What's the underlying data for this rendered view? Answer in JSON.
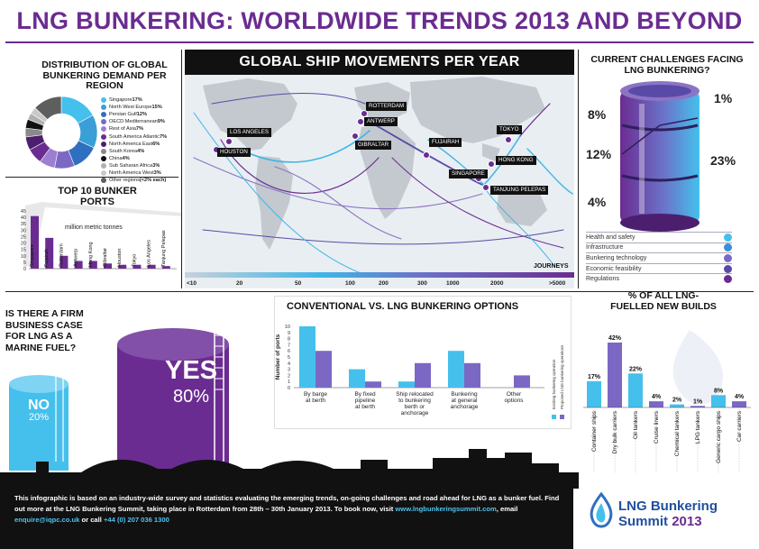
{
  "header": {
    "title": "LNG BUNKERING: WORLDWIDE TRENDS 2013 AND BEYOND"
  },
  "colors": {
    "purple": "#6b2c91",
    "blue": "#3fb6e8",
    "lavender": "#8c73c4",
    "dark": "#111111"
  },
  "donut": {
    "title": "DISTRIBUTION OF GLOBAL BUNKERING DEMAND PER REGION",
    "items": [
      {
        "label": "Singapore ",
        "value_label": "17%",
        "value": 17,
        "color": "#45c0ec"
      },
      {
        "label": "North West Europe ",
        "value_label": "15%",
        "value": 15,
        "color": "#3a9fd6"
      },
      {
        "label": "Persian Gulf ",
        "value_label": "12%",
        "value": 12,
        "color": "#2f6fbf"
      },
      {
        "label": "OECD Mediterranean ",
        "value_label": "9%",
        "value": 9,
        "color": "#7b68c4"
      },
      {
        "label": "Rest of Asia ",
        "value_label": "7%",
        "value": 7,
        "color": "#9c7fd0"
      },
      {
        "label": "South America Atlantic ",
        "value_label": "7%",
        "value": 7,
        "color": "#6b2c91"
      },
      {
        "label": "North America East ",
        "value_label": "6%",
        "value": 6,
        "color": "#4b1f6e"
      },
      {
        "label": "South Korea ",
        "value_label": "4%",
        "value": 4,
        "color": "#8a8a8a"
      },
      {
        "label": "China ",
        "value_label": "4%",
        "value": 4,
        "color": "#111111"
      },
      {
        "label": "Sub Saharan Africa ",
        "value_label": "3%",
        "value": 3,
        "color": "#b0b0b0"
      },
      {
        "label": "North America West ",
        "value_label": "3%",
        "value": 3,
        "color": "#c9c9c9"
      },
      {
        "label": "Other regions ",
        "value_label": "(<2% each)",
        "value": 13,
        "color": "#5e5e5e"
      }
    ]
  },
  "ports": {
    "title": "TOP 10 BUNKER PORTS",
    "unit": "million metric tonnes",
    "y_ticks": [
      "45",
      "40",
      "35",
      "30",
      "25",
      "20",
      "15",
      "10",
      "5",
      "0"
    ]
  },
  "chart_data": [
    {
      "type": "pie",
      "title": "DISTRIBUTION OF GLOBAL BUNKERING DEMAND PER REGION",
      "categories": [
        "Singapore",
        "North West Europe",
        "Persian Gulf",
        "OECD Mediterranean",
        "Rest of Asia",
        "South America Atlantic",
        "North America East",
        "South Korea",
        "China",
        "Sub Saharan Africa",
        "North America West",
        "Other regions"
      ],
      "values": [
        17,
        15,
        12,
        9,
        7,
        7,
        6,
        4,
        4,
        3,
        3,
        13
      ]
    },
    {
      "type": "bar",
      "title": "TOP 10 BUNKER PORTS",
      "ylabel": "million metric tonnes",
      "ylim": [
        0,
        45
      ],
      "categories": [
        "Singapore",
        "Fujairah",
        "Rotterdam",
        "Antwerp",
        "Hong Kong",
        "Gibraltar",
        "Houston",
        "Tokyo",
        "Los Angeles",
        "Tanjung Pelepas"
      ],
      "values": [
        41,
        24,
        10,
        6,
        6,
        4,
        3,
        3,
        3,
        2
      ]
    },
    {
      "type": "bar",
      "title": "CONVENTIONAL VS. LNG BUNKERING OPTIONS",
      "ylabel": "Number of ports",
      "ylim": [
        0,
        10
      ],
      "categories": [
        "By barge at berth",
        "By fixed pipeline at berth",
        "Ship relocated to bunkering berth or anchorage",
        "Bunkering at general anchorage",
        "Other options"
      ],
      "series": [
        {
          "name": "Existing bunkering operation",
          "values": [
            10,
            3,
            1,
            6,
            0
          ]
        },
        {
          "name": "Proposed LNG bunkering operations",
          "values": [
            6,
            1,
            4,
            4,
            2
          ]
        }
      ]
    },
    {
      "type": "bar",
      "title": "% OF ALL LNG-FUELLED NEW BUILDS",
      "categories": [
        "Container ships",
        "Dry bulk carriers",
        "Oil tankers",
        "Cruise liners",
        "Chemical tankers",
        "LPG tankers",
        "Generic cargo ships",
        "Car carriers"
      ],
      "values": [
        17,
        42,
        22,
        4,
        2,
        1,
        8,
        4
      ]
    },
    {
      "type": "bar",
      "title": "CURRENT CHALLENGES FACING LNG BUNKERING?",
      "categories": [
        "Health and safety",
        "Infrastructure",
        "Bunkering technology",
        "Economic feasibility",
        "Regulations"
      ],
      "values": [
        1,
        23,
        4,
        12,
        8
      ]
    }
  ],
  "map": {
    "title": "GLOBAL SHIP MOVEMENTS PER YEAR",
    "ports": [
      "ROTTERDAM",
      "ANTWERP",
      "GIBRALTAR",
      "LOS ANGELES",
      "HOUSTON",
      "FUJAIRAH",
      "TOKYO",
      "HONG KONG",
      "SINGAPORE",
      "TANJUNG PELEPAS"
    ],
    "journeys_label": "JOURNEYS",
    "scale": [
      "<10",
      "20",
      "50",
      "100",
      "200",
      "300",
      "1000",
      "2000",
      ">5000"
    ]
  },
  "challenges": {
    "title": "CURRENT CHALLENGES FACING LNG BUNKERING?",
    "labels_pct": [
      "1%",
      "8%",
      "12%",
      "23%",
      "4%"
    ],
    "legend": [
      {
        "label": "Health and safety",
        "color": "#45c0ec"
      },
      {
        "label": "Infrastructure",
        "color": "#3a8fd6"
      },
      {
        "label": "Bunkering technology",
        "color": "#7b68c4"
      },
      {
        "label": "Economic feasibility",
        "color": "#5a4aa8"
      },
      {
        "label": "Regulations",
        "color": "#6b2c91"
      }
    ]
  },
  "business_case": {
    "question": "IS THERE A FIRM BUSINESS CASE FOR LNG AS A MARINE FUEL?",
    "yes_label": "YES",
    "yes_value": "80%",
    "no_label": "NO",
    "no_value": "20%"
  },
  "options": {
    "title": "CONVENTIONAL VS. LNG BUNKERING OPTIONS",
    "ylabel": "Number of ports",
    "y_ticks": [
      "10",
      "9",
      "8",
      "7",
      "6",
      "5",
      "4",
      "3",
      "2",
      "1",
      "0"
    ],
    "cat_lines": [
      [
        "By barge",
        "at berth"
      ],
      [
        "By fixed",
        "pipeline",
        "at berth"
      ],
      [
        "Ship relocated",
        "to bunkering",
        "berth or",
        "anchorage"
      ],
      [
        "Bunkering",
        "at general",
        "anchorage"
      ],
      [
        "Other",
        "options"
      ]
    ],
    "legend": [
      "Existing bunkering operation",
      "Proposed LNG bunkering operations"
    ]
  },
  "newbuilds": {
    "title": "% OF ALL LNG-FUELLED NEW BUILDS",
    "value_labels": [
      "17%",
      "42%",
      "22%",
      "4%",
      "2%",
      "1%",
      "8%",
      "4%"
    ]
  },
  "footer": {
    "text1": "This infographic is based on an industry-wide survey and statistics evaluating the emerging trends, on-going challenges and road ahead for LNG as a bunker fuel. Find out more at the LNG Bunkering Summit, taking place in Rotterdam from 28th – 30th January 2013. To book now, visit ",
    "url": "www.lngbunkeringsummit.com",
    "text2": ", email ",
    "email": "enquire@iqpc.co.uk",
    "text3": " or call ",
    "phone": "+44 (0) 207 036 1300"
  },
  "logo": {
    "line1": "LNG Bunkering",
    "line2": "Summit ",
    "year": "2013"
  }
}
